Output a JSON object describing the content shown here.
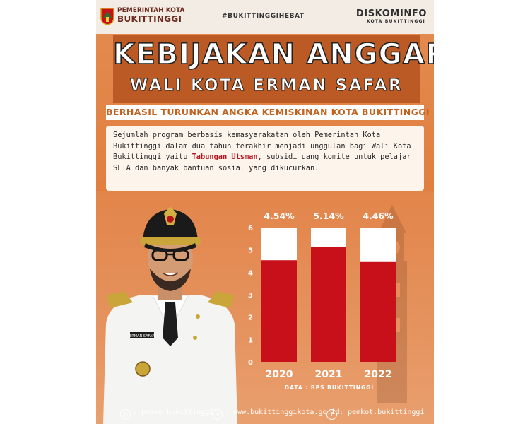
{
  "header": {
    "gov_line1": "PEMERINTAH KOTA",
    "gov_line2": "BUKITTINGGI",
    "hashtag": "#BUKITTINGGIHEBAT",
    "dept_line1": "DISKOMINFO",
    "dept_line2": "KOTA BUKITTINGGI"
  },
  "title": {
    "line1": "KEBIJAKAN ANGGARAN",
    "line2": "WALI KOTA ERMAN SAFAR",
    "subtitle": "BERHASIL TURUNKAN ANGKA KEMISKINAN KOTA BUKITTINGGI"
  },
  "body": {
    "text_before": "Sejumlah program berbasis kemasyarakatan oleh Pemerintah Kota Bukittinggi dalam dua tahun terakhir menjadi unggulan bagi Wali Kota Bukittinggi yaitu ",
    "highlight": "Tabungan Utsman",
    "text_after": ", subsidi uang komite untuk pelajar SLTA dan banyak bantuan sosial yang dikucurkan."
  },
  "name_tag": "ERMAN SAFAR",
  "chart_data": {
    "type": "bar",
    "categories": [
      "2020",
      "2021",
      "2022"
    ],
    "values": [
      4.54,
      5.14,
      4.46
    ],
    "value_labels": [
      "4.54%",
      "5.14%",
      "4.46%"
    ],
    "yticks": [
      "0",
      "1",
      "2",
      "3",
      "4",
      "5",
      "6"
    ],
    "ylim": [
      0,
      6
    ],
    "source": "DATA : BPS BUKITTINGGI",
    "colors": {
      "bar": "#c8101a",
      "bar_background": "#ffffff",
      "text": "#ffffff"
    }
  },
  "footer": {
    "instagram": ": pemko_bukittinggi",
    "website": ": www.bukittinggikota.go.id",
    "facebook": ": pemkot.bukittinggi"
  },
  "colors": {
    "accent": "#e07a38",
    "title_banner": "#bb5a24",
    "highlight": "#b8121c"
  }
}
